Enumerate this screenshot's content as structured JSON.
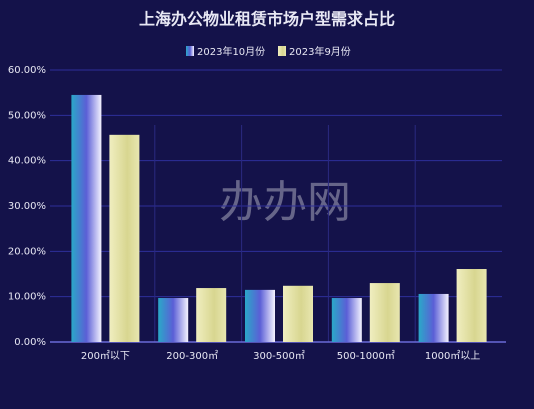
{
  "chart_data": {
    "type": "bar",
    "title": "上海办公物业租赁市场户型需求占比",
    "watermark": "办办网",
    "categories": [
      "200㎡以下",
      "200-300㎡",
      "300-500㎡",
      "500-1000㎡",
      "1000㎡以上"
    ],
    "series": [
      {
        "name": "2023年10月份",
        "color": "#5b5fd6",
        "values": [
          54.5,
          9.7,
          11.5,
          9.7,
          10.6
        ]
      },
      {
        "name": "2023年9月份",
        "color": "#d8d690",
        "values": [
          45.7,
          11.9,
          12.4,
          13.0,
          16.1
        ]
      }
    ],
    "ylim": [
      0,
      60
    ],
    "yticks": [
      {
        "value": 0,
        "label": "0.00%"
      },
      {
        "value": 10,
        "label": "10.00%"
      },
      {
        "value": 20,
        "label": "20.00%"
      },
      {
        "value": 30,
        "label": "30.00%"
      },
      {
        "value": 40,
        "label": "40.00%"
      },
      {
        "value": 50,
        "label": "50.00%"
      },
      {
        "value": 60,
        "label": "60.00%"
      }
    ],
    "grid": true,
    "legend": "top"
  }
}
